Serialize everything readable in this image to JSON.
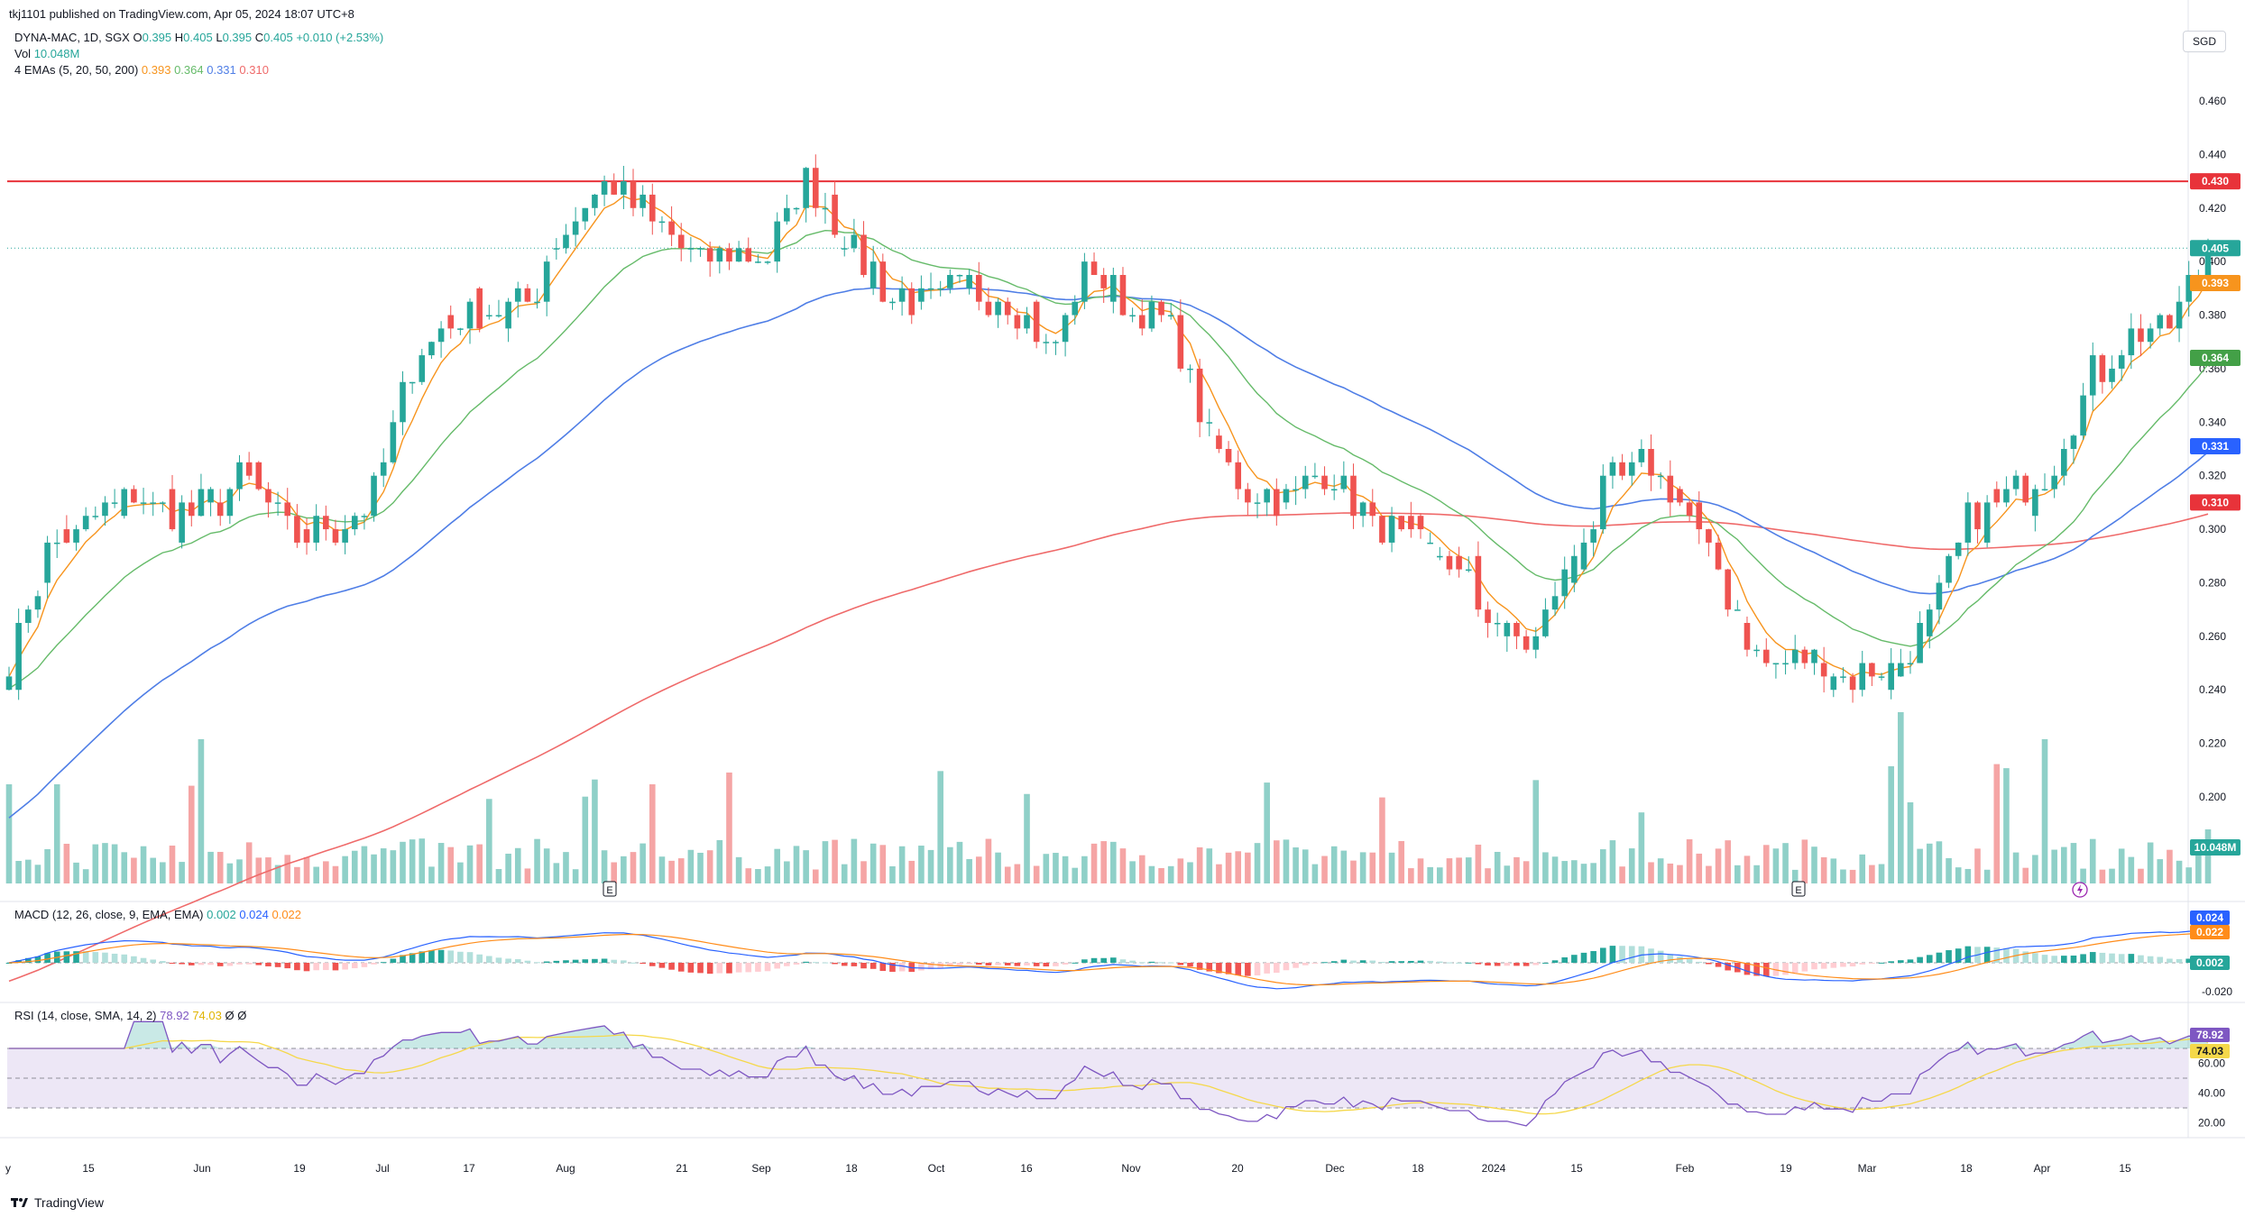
{
  "header": {
    "publish_line": "tkj1101 published on TradingView.com, Apr 05, 2024 18:07 UTC+8",
    "symbol": "DYNA-MAC, 1D, SGX",
    "ohlc": [
      {
        "k": "O",
        "v": "0.395"
      },
      {
        "k": "H",
        "v": "0.405"
      },
      {
        "k": "L",
        "v": "0.395"
      },
      {
        "k": "C",
        "v": "0.405"
      }
    ],
    "change": "+0.010 (+2.53%)",
    "vol_label": "Vol",
    "vol_value": "10.048M",
    "ema_label": "4 EMAs (5, 20, 50, 200)",
    "ema_values": [
      "0.393",
      "0.364",
      "0.331",
      "0.310"
    ],
    "currency_button": "SGD"
  },
  "macd_legend": {
    "label": "MACD (12, 26, close, 9, EMA, EMA)",
    "values": [
      "0.002",
      "0.024",
      "0.022"
    ]
  },
  "rsi_legend": {
    "label": "RSI (14, close, SMA, 14, 2)",
    "values": [
      "78.92",
      "74.03"
    ],
    "extra": "Ø Ø"
  },
  "footer": {
    "brand": "TradingView"
  },
  "colors": {
    "up": "#26a69a",
    "down": "#ef5350",
    "vol_up": "#8fd0c8",
    "vol_down": "#f5a5a5",
    "ema5": "#f7941d",
    "ema20": "#66bb6a",
    "ema50": "#4f7ee6",
    "ema200": "#ef6a6a",
    "resistance": "#e8333a",
    "macd": "#2962ff",
    "signal": "#ff8c1a",
    "rsi": "#7e57c2",
    "rsi_ma": "#f5d84a",
    "band": "#ede7f6"
  },
  "chart_data": {
    "type": "candlestick",
    "price_axis": {
      "ticks": [
        "0.460",
        "0.440",
        "0.420",
        "0.400",
        "0.380",
        "0.360",
        "0.340",
        "0.320",
        "0.300",
        "0.280",
        "0.260",
        "0.240",
        "0.220",
        "0.200"
      ],
      "range": [
        0.195,
        0.47
      ]
    },
    "resistance_line": "0.430",
    "last_price": "0.405",
    "price_badges": [
      {
        "text": "0.430",
        "value": 0.43,
        "color": "#e8333a"
      },
      {
        "text": "0.405",
        "value": 0.405,
        "color": "#26a69a"
      },
      {
        "text": "0.393",
        "value": 0.393,
        "color": "#f7941d"
      },
      {
        "text": "0.364",
        "value": 0.364,
        "color": "#43a047"
      },
      {
        "text": "0.331",
        "value": 0.331,
        "color": "#2962ff"
      },
      {
        "text": "0.310",
        "value": 0.31,
        "color": "#e8333a"
      }
    ],
    "volume_badge": "10.048M",
    "macd_badges": [
      "0.024",
      "0.022",
      "0.002"
    ],
    "macd_ticks": [
      "-0.020"
    ],
    "rsi_badges": [
      "78.92",
      "74.03"
    ],
    "rsi_ticks": [
      "60.00",
      "40.00",
      "20.00"
    ],
    "rsi_levels": [
      70,
      50,
      30
    ],
    "x_labels": [
      "15",
      "Jun",
      "19",
      "Jul",
      "17",
      "Aug",
      "21",
      "Sep",
      "18",
      "Oct",
      "16",
      "Nov",
      "20",
      "Dec",
      "18",
      "2024",
      "15",
      "Feb",
      "19",
      "Mar",
      "18",
      "Apr",
      "15"
    ],
    "earnings_markers": [
      "E",
      "E"
    ],
    "anchors": [
      [
        0.245,
        0.26
      ],
      [
        0.3,
        0.28
      ],
      [
        0.31,
        0.29
      ],
      [
        0.32,
        0.3
      ],
      [
        0.31,
        0.3
      ],
      [
        0.315,
        0.3
      ],
      [
        0.325,
        0.31
      ],
      [
        0.3,
        0.295
      ],
      [
        0.305,
        0.295
      ],
      [
        0.31,
        0.3
      ],
      [
        0.38,
        0.33
      ],
      [
        0.38,
        0.375
      ],
      [
        0.385,
        0.375
      ],
      [
        0.39,
        0.38
      ],
      [
        0.425,
        0.4
      ],
      [
        0.435,
        0.42
      ],
      [
        0.425,
        0.405
      ],
      [
        0.4,
        0.4
      ],
      [
        0.405,
        0.395
      ],
      [
        0.405,
        0.4
      ],
      [
        0.44,
        0.42
      ],
      [
        0.41,
        0.405
      ],
      [
        0.39,
        0.385
      ],
      [
        0.385,
        0.38
      ],
      [
        0.395,
        0.385
      ],
      [
        0.39,
        0.38
      ],
      [
        0.37,
        0.36
      ],
      [
        0.405,
        0.39
      ],
      [
        0.385,
        0.38
      ],
      [
        0.38,
        0.375
      ],
      [
        0.34,
        0.33
      ],
      [
        0.315,
        0.31
      ],
      [
        0.315,
        0.31
      ],
      [
        0.33,
        0.31
      ],
      [
        0.305,
        0.3
      ],
      [
        0.295,
        0.29
      ],
      [
        0.29,
        0.285
      ],
      [
        0.275,
        0.26
      ],
      [
        0.25,
        0.26
      ],
      [
        0.29,
        0.28
      ],
      [
        0.32,
        0.31
      ],
      [
        0.325,
        0.32
      ],
      [
        0.31,
        0.3
      ],
      [
        0.28,
        0.27
      ],
      [
        0.25,
        0.24
      ],
      [
        0.255,
        0.25
      ],
      [
        0.25,
        0.24
      ],
      [
        0.245,
        0.25
      ],
      [
        0.26,
        0.27
      ],
      [
        0.3,
        0.31
      ],
      [
        0.31,
        0.315
      ],
      [
        0.32,
        0.325
      ],
      [
        0.355,
        0.355
      ],
      [
        0.375,
        0.37
      ],
      [
        0.37,
        0.38
      ],
      [
        0.405,
        0.405
      ]
    ],
    "note": "Daily candles ~May 2023 to Apr 05, 2024; series generated by interpolating the anchor [open/close] pairs."
  }
}
